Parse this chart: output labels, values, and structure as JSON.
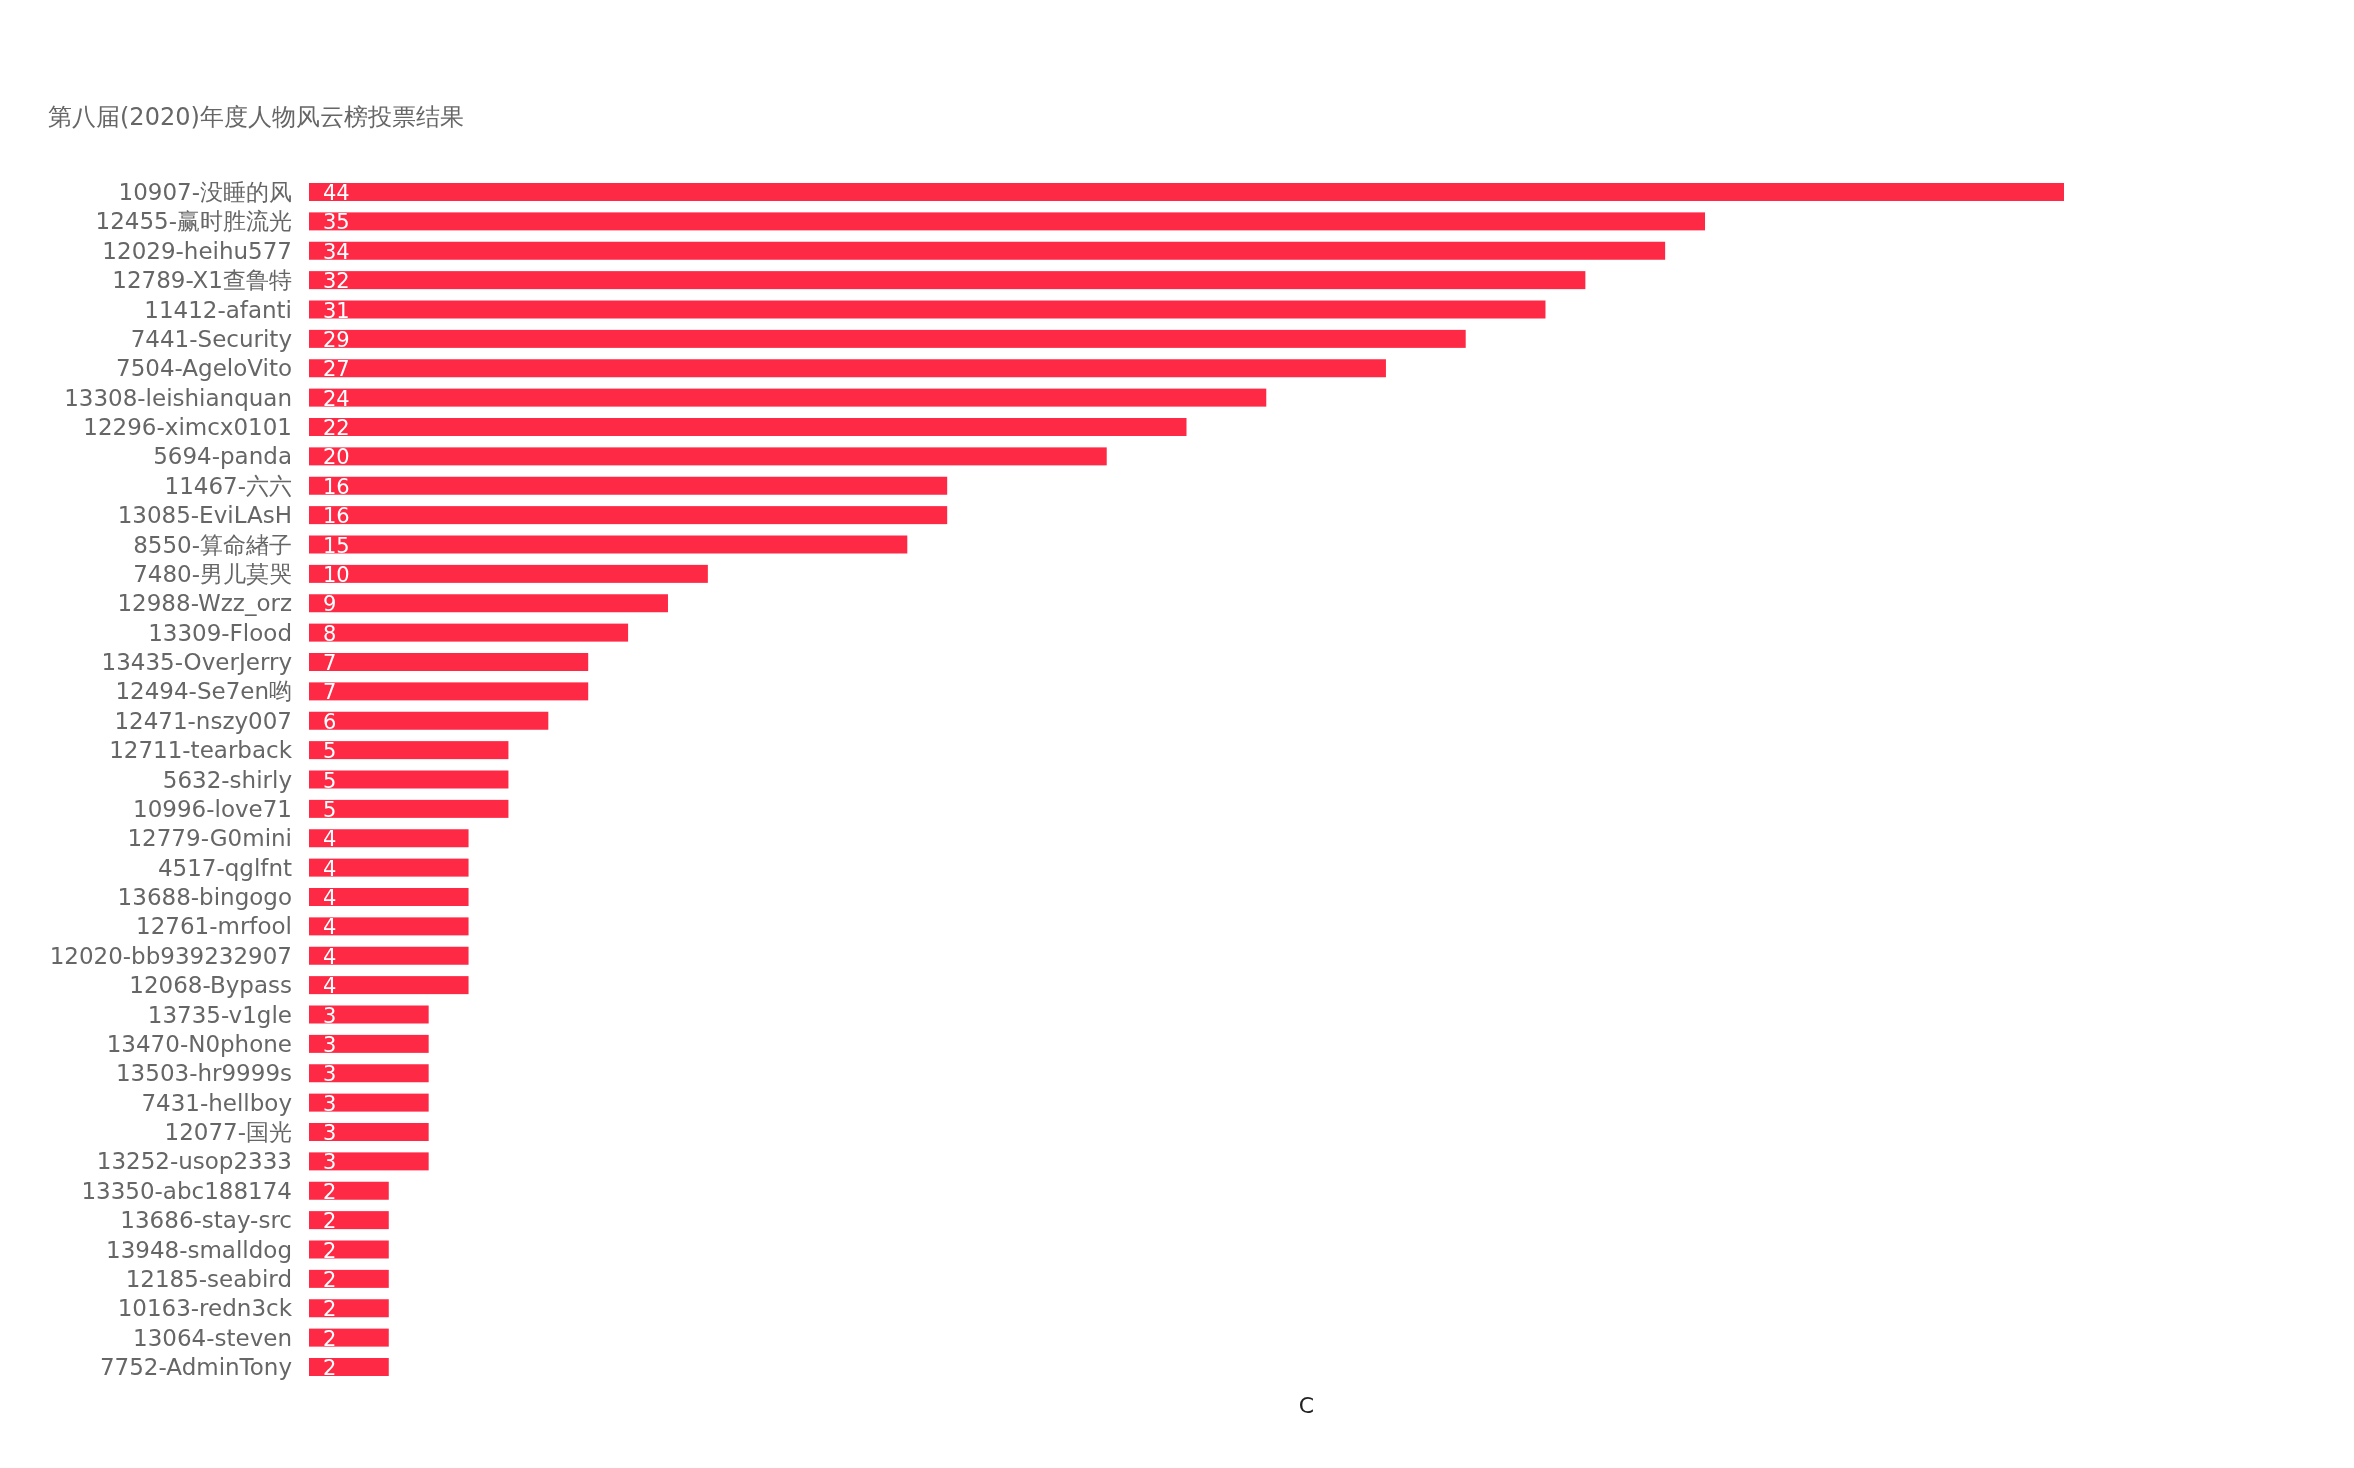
{
  "chart_data": {
    "type": "bar",
    "orientation": "horizontal",
    "subtitle": "第八届(2020)年度人物风云榜投票结果",
    "xlabel": "C",
    "color": "#fe2a45",
    "data_labels": true,
    "categories": [
      "10907-没睡的风",
      "12455-赢时胜流光",
      "12029-heihu577",
      "12789-X1查鲁特",
      "11412-afanti",
      "7441-Security",
      "7504-AgeloVito",
      "13308-leishianquan",
      "12296-ximcx0101",
      "5694-panda",
      "11467-六六",
      "13085-EviLAsH",
      "8550-算命緖子",
      "7480-男儿莫哭",
      "12988-Wzz_orz",
      "13309-Flood",
      "13435-OverJerry",
      "12494-Se7en哟",
      "12471-nszy007",
      "12711-tearback",
      "5632-shirly",
      "10996-love71",
      "12779-G0mini",
      "4517-qglfnt",
      "13688-bingogo",
      "12761-mrfool",
      "12020-bb939232907",
      "12068-Bypass",
      "13735-v1gle",
      "13470-N0phone",
      "13503-hr9999s",
      "7431-hellboy",
      "12077-国光",
      "13252-usop2333",
      "13350-abc188174",
      "13686-stay-src",
      "13948-smalldog",
      "12185-seabird",
      "10163-redn3ck",
      "13064-steven",
      "7752-AdminTony"
    ],
    "values": [
      44,
      35,
      34,
      32,
      31,
      29,
      27,
      24,
      22,
      20,
      16,
      16,
      15,
      10,
      9,
      8,
      7,
      7,
      6,
      5,
      5,
      5,
      4,
      4,
      4,
      4,
      4,
      4,
      3,
      3,
      3,
      3,
      3,
      3,
      2,
      2,
      2,
      2,
      2,
      2,
      2
    ]
  }
}
